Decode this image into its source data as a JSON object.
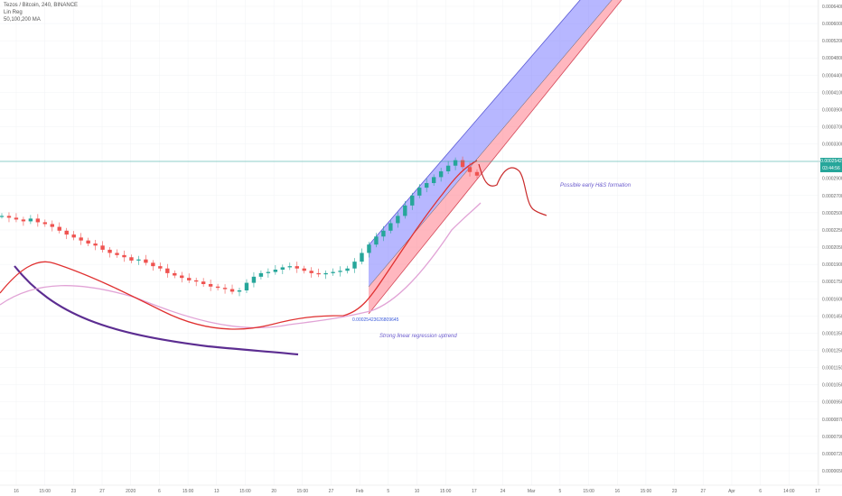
{
  "header": {
    "pair_line": "Tezos / Bitcoin, 240, BINANCE",
    "indicator_1": "Lin Reg",
    "indicator_2": "50,100,200 MA"
  },
  "price_badge": {
    "price": "0.0002542",
    "countdown": "03:44:56",
    "color": "#26a69a"
  },
  "annotations": {
    "hs_note": "Possible early H&S formation",
    "uptrend_note": "Strong linear regression uptrend",
    "regression_value": "0.00025423626809645"
  },
  "colors": {
    "candle_up": "#26a69a",
    "candle_down": "#ef5350",
    "ma50": "#e03131",
    "ma100": "#e1a3d6",
    "curve": "#5c2d91",
    "band_upper": "#7b7bff",
    "band_lower": "#ff7b8a"
  },
  "chart_data": {
    "type": "candlestick",
    "price_axis_labels": [
      "0.0006400",
      "0.0006000",
      "0.0005200",
      "0.0004800",
      "0.0004400",
      "0.0004100",
      "0.0003900",
      "0.0003700",
      "0.0003300",
      "0.0003100",
      "0.0002900",
      "0.0002700",
      "0.0002500",
      "0.0002250",
      "0.0002050",
      "0.0001900",
      "0.0001750",
      "0.0001600",
      "0.0001450",
      "0.0001350",
      "0.0001250",
      "0.0001150",
      "0.0001050",
      "0.0000950",
      "0.0000870",
      "0.0000790",
      "0.0000720",
      "0.0000650"
    ],
    "time_axis_labels": [
      "16",
      "15:00",
      "23",
      "27",
      "2020",
      "6",
      "15:00",
      "13",
      "15:00",
      "20",
      "15:00",
      "27",
      "Feb",
      "5",
      "10",
      "15:00",
      "17",
      "24",
      "Mar",
      "5",
      "15:00",
      "16",
      "15:00",
      "23",
      "27",
      "Apr",
      "6",
      "14:00",
      "17"
    ],
    "series": [
      {
        "name": "Tezos / Bitcoin",
        "close": [
          0.000228,
          0.000226,
          0.000224,
          0.000222,
          0.000225,
          0.000221,
          0.000219,
          0.000216,
          0.000212,
          0.000208,
          0.000205,
          0.000202,
          0.000199,
          0.000197,
          0.000193,
          0.00019,
          0.000188,
          0.000186,
          0.000183,
          0.000184,
          0.000181,
          0.000178,
          0.000176,
          0.000172,
          0.00017,
          0.000168,
          0.000166,
          0.000165,
          0.000163,
          0.000161,
          0.00016,
          0.000159,
          0.000157,
          0.000158,
          0.000164,
          0.000169,
          0.000172,
          0.000173,
          0.000175,
          0.000177,
          0.000178,
          0.000176,
          0.000174,
          0.000172,
          0.000171,
          0.000172,
          0.000173,
          0.000174,
          0.000176,
          0.000182,
          0.00019,
          0.000198,
          0.000206,
          0.000212,
          0.00022,
          0.000228,
          0.00024,
          0.000252,
          0.000262,
          0.000268,
          0.000276,
          0.000284,
          0.000292,
          0.0003,
          0.00029,
          0.000283,
          0.000278
        ]
      }
    ],
    "indicators": [
      "Lin Reg",
      "MA 50",
      "MA 100",
      "MA 200"
    ]
  }
}
